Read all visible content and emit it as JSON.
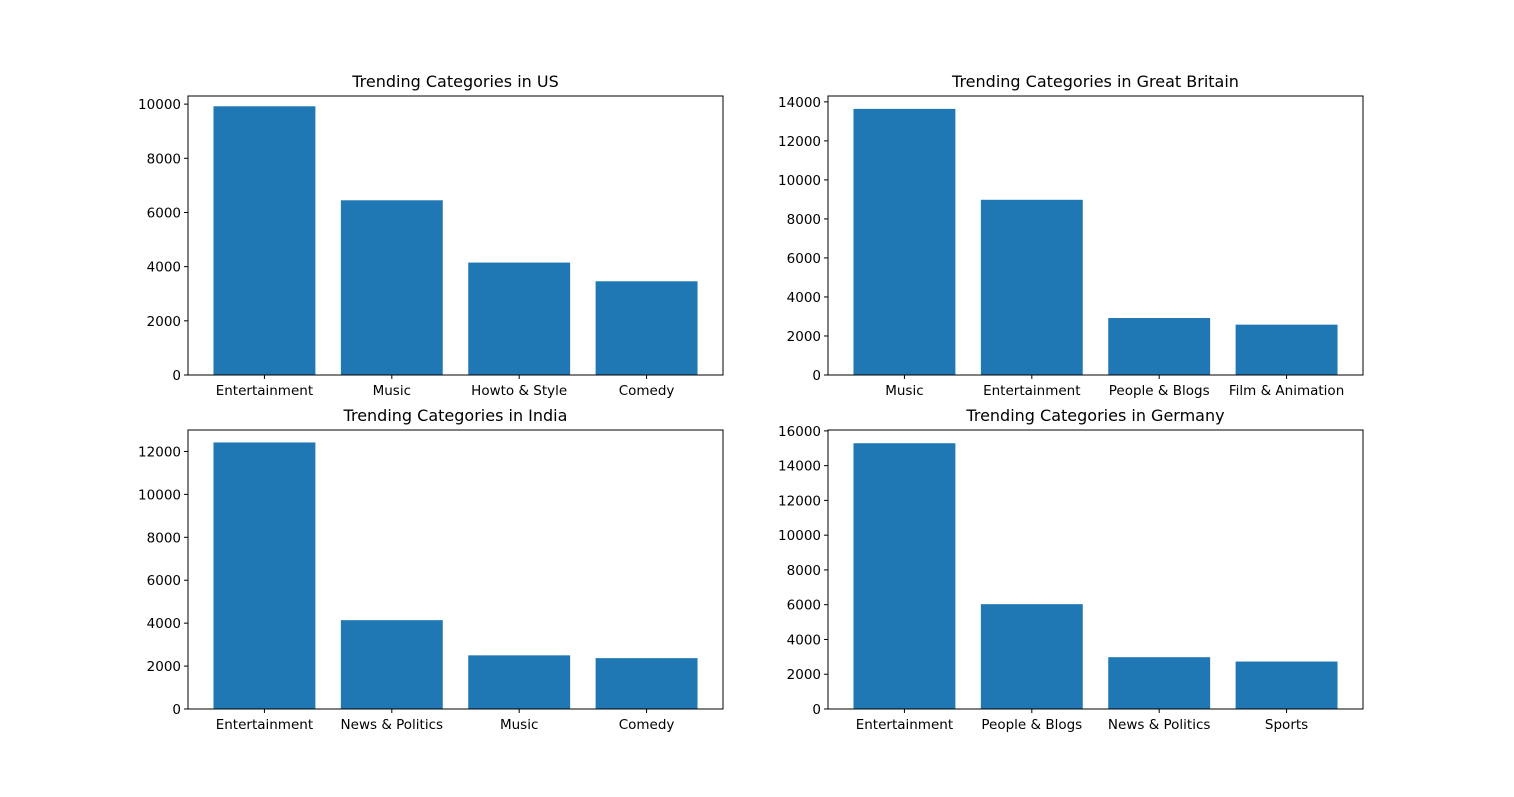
{
  "chart_data": [
    {
      "type": "bar",
      "title": "Trending Categories in US",
      "categories": [
        "Entertainment",
        "Music",
        "Howto & Style",
        "Comedy"
      ],
      "values": [
        9920,
        6450,
        4150,
        3460
      ],
      "ylim": [
        0,
        10300
      ],
      "yticks": [
        0,
        2000,
        4000,
        6000,
        8000,
        10000
      ],
      "xlabel": "",
      "ylabel": "",
      "color": "#1f77b4"
    },
    {
      "type": "bar",
      "title": "Trending Categories in Great Britain",
      "categories": [
        "Music",
        "Entertainment",
        "People & Blogs",
        "Film & Animation"
      ],
      "values": [
        13640,
        8980,
        2920,
        2580
      ],
      "ylim": [
        0,
        14300
      ],
      "yticks": [
        0,
        2000,
        4000,
        6000,
        8000,
        10000,
        12000,
        14000
      ],
      "xlabel": "",
      "ylabel": "",
      "color": "#1f77b4"
    },
    {
      "type": "bar",
      "title": "Trending Categories in India",
      "categories": [
        "Entertainment",
        "News & Politics",
        "Music",
        "Comedy"
      ],
      "values": [
        12420,
        4140,
        2500,
        2370
      ],
      "ylim": [
        0,
        13000
      ],
      "yticks": [
        0,
        2000,
        4000,
        6000,
        8000,
        10000,
        12000
      ],
      "xlabel": "",
      "ylabel": "",
      "color": "#1f77b4"
    },
    {
      "type": "bar",
      "title": "Trending Categories in Germany",
      "categories": [
        "Entertainment",
        "People & Blogs",
        "News & Politics",
        "Sports"
      ],
      "values": [
        15290,
        6030,
        2980,
        2730
      ],
      "ylim": [
        0,
        16050
      ],
      "yticks": [
        0,
        2000,
        4000,
        6000,
        8000,
        10000,
        12000,
        14000,
        16000
      ],
      "xlabel": "",
      "ylabel": "",
      "color": "#1f77b4"
    }
  ]
}
